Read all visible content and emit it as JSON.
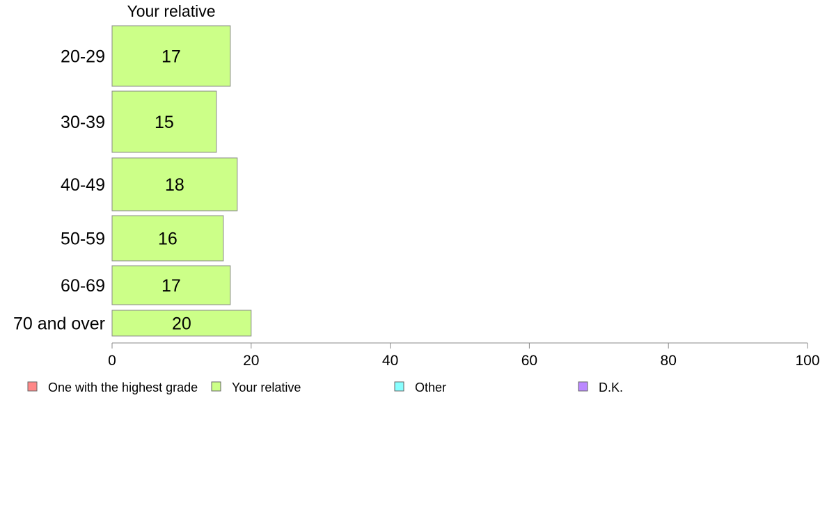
{
  "chart_data": {
    "type": "bar",
    "orientation": "horizontal",
    "title": "Your relative",
    "categories": [
      "20-29",
      "30-39",
      "40-49",
      "50-59",
      "60-69",
      "70 and over"
    ],
    "series": [
      {
        "name": "Your relative",
        "values": [
          17,
          15,
          18,
          16,
          17,
          20
        ],
        "color": "#ccff88"
      }
    ],
    "xlim": [
      0,
      100
    ],
    "xticks": [
      0,
      20,
      40,
      60,
      80,
      100
    ],
    "legend": {
      "placement": "bottom",
      "entries": [
        {
          "label": "One with the highest grade",
          "color": "#ff8888"
        },
        {
          "label": "Your relative",
          "color": "#ccff88"
        },
        {
          "label": "Other",
          "color": "#88ffff"
        },
        {
          "label": "D.K.",
          "color": "#bb88ff"
        }
      ]
    },
    "grid": false
  }
}
